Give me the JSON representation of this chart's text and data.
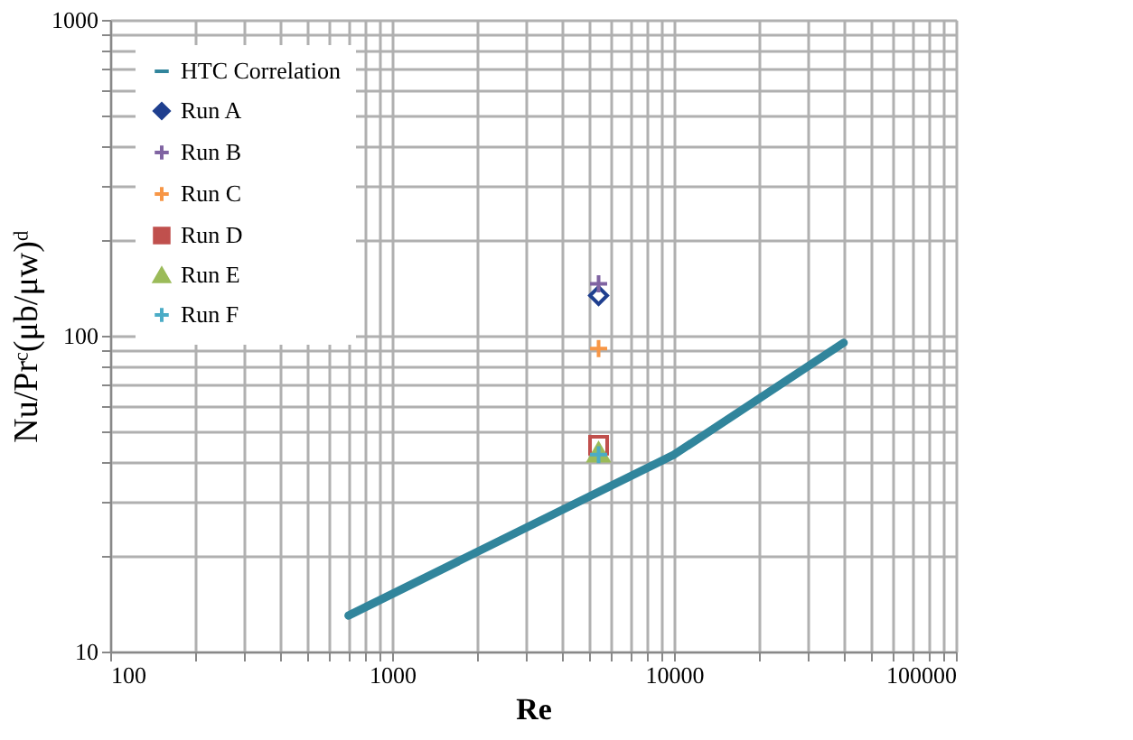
{
  "chart_data": {
    "type": "scatter",
    "xlabel": "Re",
    "ylabel": "Nu/Prᶜ(μb/μw)ᵈ",
    "log": "xy",
    "grid": true,
    "legend": "top left",
    "xlim": [
      100,
      100000
    ],
    "ylim": [
      10,
      1000
    ],
    "xticks": [
      100,
      {
        "value": 200,
        "label": null
      },
      {
        "value": 300,
        "label": null
      },
      {
        "value": 400,
        "label": null
      },
      {
        "value": 500,
        "label": null
      },
      {
        "value": 600,
        "label": null
      },
      {
        "value": 700,
        "label": null
      },
      {
        "value": 800,
        "label": null
      },
      {
        "value": 900,
        "label": null
      },
      1000,
      {
        "value": 2000,
        "label": null
      },
      {
        "value": 3000,
        "label": null
      },
      {
        "value": 4000,
        "label": null
      },
      {
        "value": 5000,
        "label": null
      },
      {
        "value": 6000,
        "label": null
      },
      {
        "value": 7000,
        "label": null
      },
      {
        "value": 8000,
        "label": null
      },
      {
        "value": 9000,
        "label": null
      },
      10000,
      {
        "value": 20000,
        "label": null
      },
      {
        "value": 30000,
        "label": null
      },
      {
        "value": 40000,
        "label": null
      },
      {
        "value": 50000,
        "label": null
      },
      {
        "value": 60000,
        "label": null
      },
      {
        "value": 70000,
        "label": null
      },
      {
        "value": 80000,
        "label": null
      },
      {
        "value": 90000,
        "label": null
      },
      100000
    ],
    "yticks": [
      10,
      {
        "value": 20,
        "label": null
      },
      {
        "value": 30,
        "label": null
      },
      {
        "value": 40,
        "label": null
      },
      {
        "value": 50,
        "label": null
      },
      {
        "value": 60,
        "label": null
      },
      {
        "value": 70,
        "label": null
      },
      {
        "value": 80,
        "label": null
      },
      {
        "value": 90,
        "label": null
      },
      100,
      {
        "value": 200,
        "label": null
      },
      {
        "value": 300,
        "label": null
      },
      {
        "value": 400,
        "label": null
      },
      {
        "value": 500,
        "label": null
      },
      {
        "value": 600,
        "label": null
      },
      {
        "value": 700,
        "label": null
      },
      {
        "value": 800,
        "label": null
      },
      {
        "value": 900,
        "label": null
      },
      1000
    ],
    "series": [
      {
        "name": "HTC Correlation",
        "type": "line",
        "marker": "none",
        "line_style": "solid",
        "color": "#31859c",
        "x": [
          700,
          10000,
          40000
        ],
        "values": [
          13,
          42,
          95
        ]
      },
      {
        "name": "Run A",
        "marker": "diamond",
        "color": "#1f3f8f",
        "x": [
          5400
        ],
        "values": [
          134
        ]
      },
      {
        "name": "Run B",
        "marker": "cross",
        "color": "#8064a2",
        "x": [
          5400
        ],
        "values": [
          146
        ]
      },
      {
        "name": "Run C",
        "marker": "cross",
        "color": "#f79646",
        "x": [
          5400
        ],
        "values": [
          91
        ]
      },
      {
        "name": "Run D",
        "marker": "square",
        "color": "#c0504d",
        "x": [
          5400
        ],
        "values": [
          45
        ]
      },
      {
        "name": "Run E",
        "marker": "triangle",
        "color": "#9bbb59",
        "x": [
          5400
        ],
        "values": [
          43
        ]
      },
      {
        "name": "Run F",
        "marker": "cross",
        "color": "#4bacc6",
        "x": [
          5400
        ],
        "values": [
          42
        ]
      }
    ]
  }
}
